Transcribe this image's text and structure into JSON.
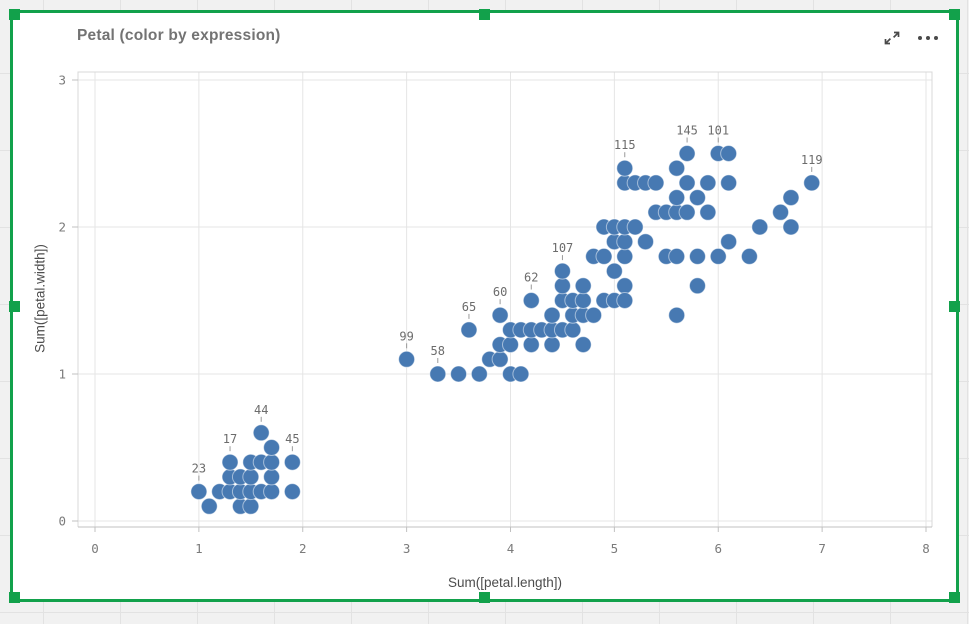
{
  "sheet": {
    "background": "#f1f1f1",
    "grid_line_color": "#e2e2e2"
  },
  "selection": {
    "frame_color": "#12a14b"
  },
  "card": {
    "title": "Petal (color by expression)",
    "icons": {
      "expand": "expand-arrows-icon",
      "menu": "more-menu-icon"
    }
  },
  "chart_data": {
    "type": "scatter",
    "title": "Petal (color by expression)",
    "xlabel": "Sum([petal.length])",
    "ylabel": "Sum([petal.width])",
    "xlim": [
      0,
      8
    ],
    "ylim": [
      0,
      3
    ],
    "x_ticks": [
      0,
      1,
      2,
      3,
      4,
      5,
      6,
      7,
      8
    ],
    "y_ticks": [
      0,
      1,
      2,
      3
    ],
    "grid": true,
    "legend": false,
    "point_color": "#4779b2",
    "point_radius": 8,
    "grid_color": "#e5e5e5",
    "axis_line_color": "#c0c0c0",
    "plot_border_color": "#d8d8d8",
    "tick_label_color": "#7b7b7b",
    "points": [
      [
        1.0,
        0.2
      ],
      [
        1.1,
        0.1
      ],
      [
        1.2,
        0.2
      ],
      [
        1.3,
        0.2
      ],
      [
        1.3,
        0.3
      ],
      [
        1.3,
        0.4
      ],
      [
        1.4,
        0.1
      ],
      [
        1.4,
        0.2
      ],
      [
        1.4,
        0.3
      ],
      [
        1.5,
        0.1
      ],
      [
        1.5,
        0.2
      ],
      [
        1.5,
        0.3
      ],
      [
        1.5,
        0.4
      ],
      [
        1.6,
        0.2
      ],
      [
        1.6,
        0.4
      ],
      [
        1.6,
        0.6
      ],
      [
        1.7,
        0.2
      ],
      [
        1.7,
        0.3
      ],
      [
        1.7,
        0.4
      ],
      [
        1.7,
        0.5
      ],
      [
        1.9,
        0.2
      ],
      [
        1.9,
        0.4
      ],
      [
        3.0,
        1.1
      ],
      [
        3.3,
        1.0
      ],
      [
        3.5,
        1.0
      ],
      [
        3.6,
        1.3
      ],
      [
        3.7,
        1.0
      ],
      [
        3.8,
        1.1
      ],
      [
        3.9,
        1.1
      ],
      [
        3.9,
        1.2
      ],
      [
        3.9,
        1.4
      ],
      [
        4.0,
        1.0
      ],
      [
        4.0,
        1.2
      ],
      [
        4.0,
        1.3
      ],
      [
        4.1,
        1.0
      ],
      [
        4.1,
        1.3
      ],
      [
        4.2,
        1.2
      ],
      [
        4.2,
        1.3
      ],
      [
        4.2,
        1.5
      ],
      [
        4.3,
        1.3
      ],
      [
        4.4,
        1.2
      ],
      [
        4.4,
        1.3
      ],
      [
        4.4,
        1.4
      ],
      [
        4.5,
        1.3
      ],
      [
        4.5,
        1.5
      ],
      [
        4.5,
        1.6
      ],
      [
        4.6,
        1.3
      ],
      [
        4.6,
        1.4
      ],
      [
        4.6,
        1.5
      ],
      [
        4.7,
        1.2
      ],
      [
        4.7,
        1.4
      ],
      [
        4.7,
        1.5
      ],
      [
        4.7,
        1.6
      ],
      [
        4.8,
        1.4
      ],
      [
        4.8,
        1.8
      ],
      [
        4.9,
        1.5
      ],
      [
        5.0,
        1.7
      ],
      [
        5.1,
        1.6
      ],
      [
        4.5,
        1.7
      ],
      [
        4.9,
        1.8
      ],
      [
        4.9,
        2.0
      ],
      [
        5.0,
        1.5
      ],
      [
        5.0,
        1.9
      ],
      [
        5.0,
        2.0
      ],
      [
        5.1,
        1.5
      ],
      [
        5.1,
        1.8
      ],
      [
        5.1,
        1.9
      ],
      [
        5.1,
        2.0
      ],
      [
        5.1,
        2.3
      ],
      [
        5.1,
        2.4
      ],
      [
        5.2,
        2.0
      ],
      [
        5.2,
        2.3
      ],
      [
        5.3,
        1.9
      ],
      [
        5.3,
        2.3
      ],
      [
        5.4,
        2.1
      ],
      [
        5.4,
        2.3
      ],
      [
        5.5,
        1.8
      ],
      [
        5.5,
        2.1
      ],
      [
        5.6,
        1.4
      ],
      [
        5.6,
        1.8
      ],
      [
        5.6,
        2.1
      ],
      [
        5.6,
        2.2
      ],
      [
        5.6,
        2.4
      ],
      [
        5.7,
        2.1
      ],
      [
        5.7,
        2.3
      ],
      [
        5.7,
        2.5
      ],
      [
        5.8,
        1.6
      ],
      [
        5.8,
        1.8
      ],
      [
        5.8,
        2.2
      ],
      [
        5.9,
        2.1
      ],
      [
        5.9,
        2.3
      ],
      [
        6.0,
        1.8
      ],
      [
        6.0,
        2.5
      ],
      [
        6.1,
        1.9
      ],
      [
        6.1,
        2.3
      ],
      [
        6.1,
        2.5
      ],
      [
        6.3,
        1.8
      ],
      [
        6.4,
        2.0
      ],
      [
        6.6,
        2.1
      ],
      [
        6.7,
        2.0
      ],
      [
        6.7,
        2.2
      ],
      [
        6.9,
        2.3
      ]
    ],
    "labeled_points": [
      {
        "label": "23",
        "x": 1.0,
        "y": 0.2
      },
      {
        "label": "17",
        "x": 1.3,
        "y": 0.4
      },
      {
        "label": "44",
        "x": 1.6,
        "y": 0.6
      },
      {
        "label": "45",
        "x": 1.9,
        "y": 0.4
      },
      {
        "label": "99",
        "x": 3.0,
        "y": 1.1
      },
      {
        "label": "58",
        "x": 3.3,
        "y": 1.0
      },
      {
        "label": "65",
        "x": 3.6,
        "y": 1.3
      },
      {
        "label": "60",
        "x": 3.9,
        "y": 1.4
      },
      {
        "label": "62",
        "x": 4.2,
        "y": 1.5
      },
      {
        "label": "107",
        "x": 4.5,
        "y": 1.7
      },
      {
        "label": "115",
        "x": 5.1,
        "y": 2.4
      },
      {
        "label": "145",
        "x": 5.7,
        "y": 2.5
      },
      {
        "label": "101",
        "x": 6.0,
        "y": 2.5
      },
      {
        "label": "119",
        "x": 6.9,
        "y": 2.3
      }
    ]
  }
}
